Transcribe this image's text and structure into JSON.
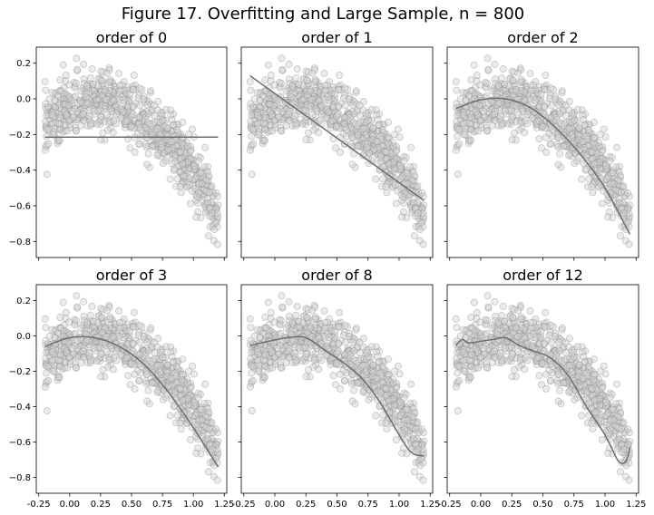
{
  "figure": {
    "title": "Figure 17. Overfitting and Large Sample, n = 800"
  },
  "chart_data": {
    "type": "scatter",
    "layout": "2x3 grid, shared x and y axes",
    "n": 800,
    "xlim": [
      -0.27,
      1.27
    ],
    "ylim": [
      -0.89,
      0.29
    ],
    "xticks": [
      -0.25,
      0.0,
      0.25,
      0.5,
      0.75,
      1.0,
      1.25
    ],
    "xtick_labels": [
      "-0.25",
      "0.00",
      "0.25",
      "0.50",
      "0.75",
      "1.00",
      "1.25"
    ],
    "yticks": [
      0.2,
      0.0,
      -0.2,
      -0.4,
      -0.6,
      -0.8
    ],
    "ytick_labels": [
      "0.2",
      "0.0",
      "−0.2",
      "−0.4",
      "−0.6",
      "−0.8"
    ],
    "grid": false,
    "point_style": {
      "fill": "#d3d3d3",
      "stroke": "#8c8c8c",
      "alpha": 0.45
    },
    "line_color": "#6e6e6e",
    "scatter_sample": {
      "x": [
        -0.18,
        -0.15,
        -0.12,
        -0.1,
        -0.08,
        -0.05,
        -0.03,
        0.0,
        0.02,
        0.05,
        0.08,
        0.1,
        0.12,
        0.15,
        0.18,
        0.2,
        0.22,
        0.25,
        0.28,
        0.3,
        0.33,
        0.35,
        0.38,
        0.4,
        0.43,
        0.45,
        0.48,
        0.5,
        0.52,
        0.55,
        0.58,
        0.6,
        0.62,
        0.65,
        0.68,
        0.7,
        0.72,
        0.75,
        0.78,
        0.8,
        0.82,
        0.85,
        0.88,
        0.9,
        0.92,
        0.95,
        0.98,
        1.0,
        1.02,
        1.05,
        1.08,
        1.1,
        1.12,
        1.15,
        1.18,
        1.2
      ],
      "y": [
        -0.02,
        0.08,
        -0.12,
        0.05,
        -0.06,
        0.12,
        -0.03,
        0.02,
        -0.1,
        0.1,
        -0.04,
        0.06,
        0.15,
        -0.08,
        0.03,
        0.18,
        -0.05,
        0.07,
        -0.12,
        0.0,
        0.09,
        -0.15,
        -0.03,
        0.04,
        -0.1,
        0.02,
        -0.18,
        -0.06,
        -0.2,
        -0.08,
        -0.22,
        -0.12,
        -0.28,
        -0.15,
        -0.3,
        -0.2,
        -0.36,
        -0.26,
        -0.4,
        -0.3,
        -0.44,
        -0.35,
        -0.48,
        -0.42,
        -0.52,
        -0.5,
        -0.58,
        -0.55,
        -0.62,
        -0.6,
        -0.68,
        -0.66,
        -0.72,
        -0.7,
        -0.78,
        -0.75
      ]
    },
    "panels": [
      {
        "title": "order of 0",
        "fit": {
          "x": [
            -0.2,
            1.2
          ],
          "y": [
            -0.215,
            -0.215
          ]
        }
      },
      {
        "title": "order of 1",
        "fit": {
          "x": [
            -0.2,
            1.2
          ],
          "y": [
            0.13,
            -0.57
          ]
        }
      },
      {
        "title": "order of 2",
        "fit": {
          "x": [
            -0.2,
            0.0,
            0.2,
            0.4,
            0.6,
            0.8,
            1.0,
            1.2
          ],
          "y": [
            -0.055,
            -0.005,
            0.0,
            -0.05,
            -0.16,
            -0.31,
            -0.5,
            -0.76
          ]
        }
      },
      {
        "title": "order of 3",
        "fit": {
          "x": [
            -0.2,
            0.0,
            0.2,
            0.4,
            0.6,
            0.8,
            1.0,
            1.2
          ],
          "y": [
            -0.06,
            -0.01,
            -0.01,
            -0.06,
            -0.16,
            -0.32,
            -0.52,
            -0.74
          ]
        }
      },
      {
        "title": "order of 8",
        "fit": {
          "x": [
            -0.2,
            -0.05,
            0.1,
            0.25,
            0.4,
            0.55,
            0.7,
            0.85,
            1.0,
            1.1,
            1.2
          ],
          "y": [
            -0.055,
            -0.03,
            -0.01,
            -0.01,
            -0.08,
            -0.15,
            -0.24,
            -0.38,
            -0.56,
            -0.66,
            -0.68
          ]
        }
      },
      {
        "title": "order of 12",
        "fit": {
          "x": [
            -0.2,
            -0.15,
            -0.1,
            0.0,
            0.1,
            0.2,
            0.3,
            0.4,
            0.55,
            0.7,
            0.85,
            1.0,
            1.1,
            1.15,
            1.18,
            1.2
          ],
          "y": [
            -0.055,
            -0.02,
            -0.04,
            -0.03,
            -0.02,
            -0.01,
            -0.05,
            -0.08,
            -0.12,
            -0.22,
            -0.4,
            -0.56,
            -0.7,
            -0.72,
            -0.69,
            -0.63
          ]
        }
      }
    ]
  }
}
